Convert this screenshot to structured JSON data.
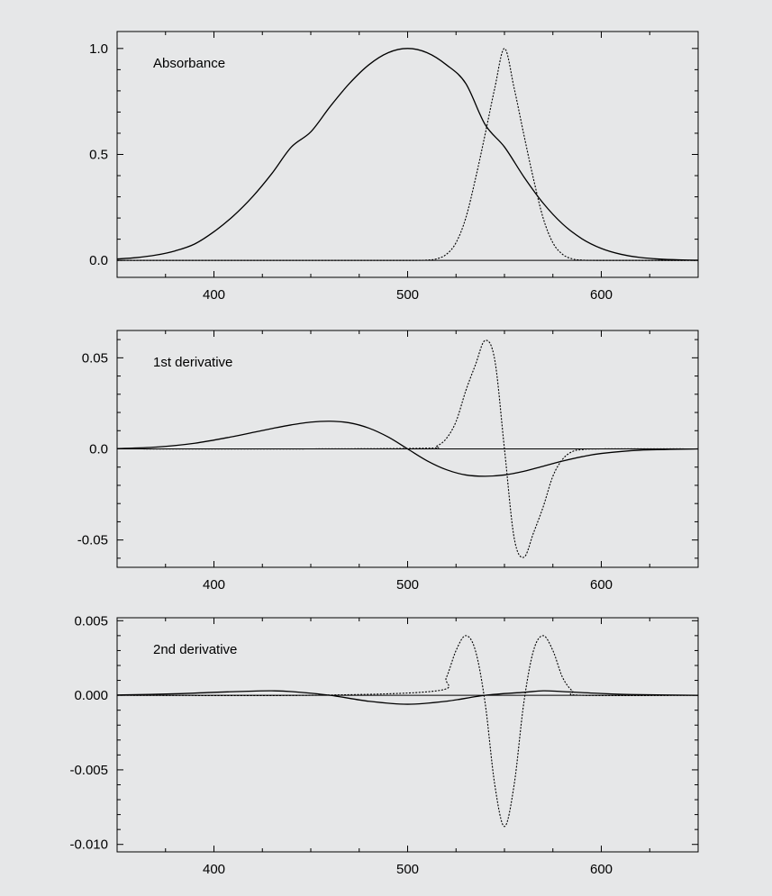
{
  "chart_data": [
    {
      "type": "line",
      "title": "Absorbance",
      "xlabel": "",
      "ylabel": "",
      "xlim": [
        350,
        650
      ],
      "ylim": [
        -0.08,
        1.08
      ],
      "x_ticks": [
        400,
        500,
        600
      ],
      "x_tick_labels": [
        "400",
        "500",
        "600"
      ],
      "x_minor_step": 25,
      "y_ticks": [
        0.0,
        0.5,
        1.0
      ],
      "y_tick_labels": [
        "0.0",
        "0.5",
        "1.0"
      ],
      "y_minor_step": 0.1,
      "grid": false,
      "legend": "none",
      "series": [
        {
          "style": "solid",
          "x": [
            350,
            360,
            370,
            380,
            390,
            400,
            410,
            420,
            430,
            440,
            450,
            460,
            470,
            480,
            490,
            500,
            510,
            520,
            530,
            540,
            550,
            560,
            570,
            580,
            590,
            600,
            610,
            620,
            630,
            640,
            650
          ],
          "y": [
            0.0067,
            0.0132,
            0.025,
            0.045,
            0.0773,
            0.1353,
            0.2096,
            0.3012,
            0.4111,
            0.5353,
            0.6065,
            0.7261,
            0.8353,
            0.9231,
            0.9802,
            1.0,
            0.9802,
            0.9231,
            0.8353,
            0.6412,
            0.5353,
            0.3945,
            0.27,
            0.172,
            0.1021,
            0.0565,
            0.0291,
            0.014,
            0.0063,
            0.0026,
            0.0011
          ]
        },
        {
          "style": "dotted",
          "x": [
            350,
            400,
            450,
            500,
            510,
            515,
            520,
            525,
            530,
            535,
            540,
            545,
            550,
            555,
            560,
            565,
            570,
            575,
            580,
            585,
            590,
            600,
            650
          ],
          "y": [
            0,
            0,
            0,
            0,
            0.0017,
            0.0073,
            0.0286,
            0.0834,
            0.1991,
            0.384,
            0.594,
            0.813,
            1.0,
            0.813,
            0.594,
            0.384,
            0.1991,
            0.0834,
            0.0286,
            0.0073,
            0.0017,
            0,
            0
          ]
        }
      ]
    },
    {
      "type": "line",
      "title": "1st derivative",
      "xlabel": "",
      "ylabel": "",
      "xlim": [
        350,
        650
      ],
      "ylim": [
        -0.065,
        0.065
      ],
      "x_ticks": [
        400,
        500,
        600
      ],
      "x_tick_labels": [
        "400",
        "500",
        "600"
      ],
      "x_minor_step": 25,
      "y_ticks": [
        -0.05,
        0.0,
        0.05
      ],
      "y_tick_labels": [
        "-0.05",
        "0.0",
        "0.05"
      ],
      "y_minor_step": 0.01,
      "grid": false,
      "legend": "none",
      "series": [
        {
          "style": "solid",
          "x": [
            350,
            370,
            390,
            410,
            420,
            430,
            440,
            450,
            460,
            470,
            480,
            490,
            500,
            510,
            520,
            530,
            540,
            550,
            560,
            570,
            580,
            590,
            600,
            620,
            650
          ],
          "y": [
            0.0002,
            0.001,
            0.0031,
            0.0068,
            0.009,
            0.0112,
            0.0132,
            0.0147,
            0.0152,
            0.0143,
            0.0114,
            0.0065,
            0,
            -0.0065,
            -0.0114,
            -0.0143,
            -0.015,
            -0.0143,
            -0.0123,
            -0.0095,
            -0.0067,
            -0.0043,
            -0.0025,
            -0.0007,
            0
          ]
        },
        {
          "style": "dotted",
          "x": [
            350,
            450,
            510,
            515,
            520,
            525,
            530,
            535,
            540,
            545,
            550,
            555,
            560,
            565,
            570,
            575,
            580,
            585,
            590,
            600,
            650
          ],
          "y": [
            0,
            0,
            0.0004,
            0.0015,
            0.0057,
            0.015,
            0.0318,
            0.0461,
            0.0595,
            0.0488,
            0,
            -0.0488,
            -0.0595,
            -0.0461,
            -0.0318,
            -0.015,
            -0.0057,
            -0.0015,
            -0.0004,
            0,
            0
          ]
        }
      ]
    },
    {
      "type": "line",
      "title": "2nd derivative",
      "xlabel": "",
      "ylabel": "",
      "xlim": [
        350,
        650
      ],
      "ylim": [
        -0.0105,
        0.0052
      ],
      "x_ticks": [
        400,
        500,
        600
      ],
      "x_tick_labels": [
        "400",
        "500",
        "600"
      ],
      "x_minor_step": 25,
      "y_ticks": [
        -0.01,
        -0.005,
        0.0,
        0.005
      ],
      "y_tick_labels": [
        "-0.010",
        "-0.005",
        "0.000",
        "0.005"
      ],
      "y_minor_step": 0.001,
      "grid": false,
      "legend": "none",
      "series": [
        {
          "style": "solid",
          "x": [
            350,
            380,
            400,
            420,
            430,
            440,
            460,
            480,
            500,
            520,
            540,
            560,
            570,
            580,
            600,
            620,
            650
          ],
          "y": [
            2e-05,
            0.0001,
            0.0002,
            0.00028,
            0.0003,
            0.00025,
            0,
            -0.0004,
            -0.0006,
            -0.0004,
            0,
            0.0002,
            0.0003,
            0.00025,
            0.00012,
            4e-05,
            0
          ]
        },
        {
          "style": "dotted",
          "x": [
            350,
            450,
            515,
            520,
            525,
            530,
            535,
            540,
            545,
            550,
            555,
            560,
            565,
            570,
            575,
            580,
            585,
            590,
            650
          ],
          "y": [
            0,
            0,
            0.0003,
            0.0012,
            0.003,
            0.004,
            0.003,
            -0.0005,
            -0.006,
            -0.0088,
            -0.006,
            -0.0005,
            0.003,
            0.004,
            0.003,
            0.0012,
            0.0003,
            0,
            0
          ]
        }
      ]
    }
  ]
}
